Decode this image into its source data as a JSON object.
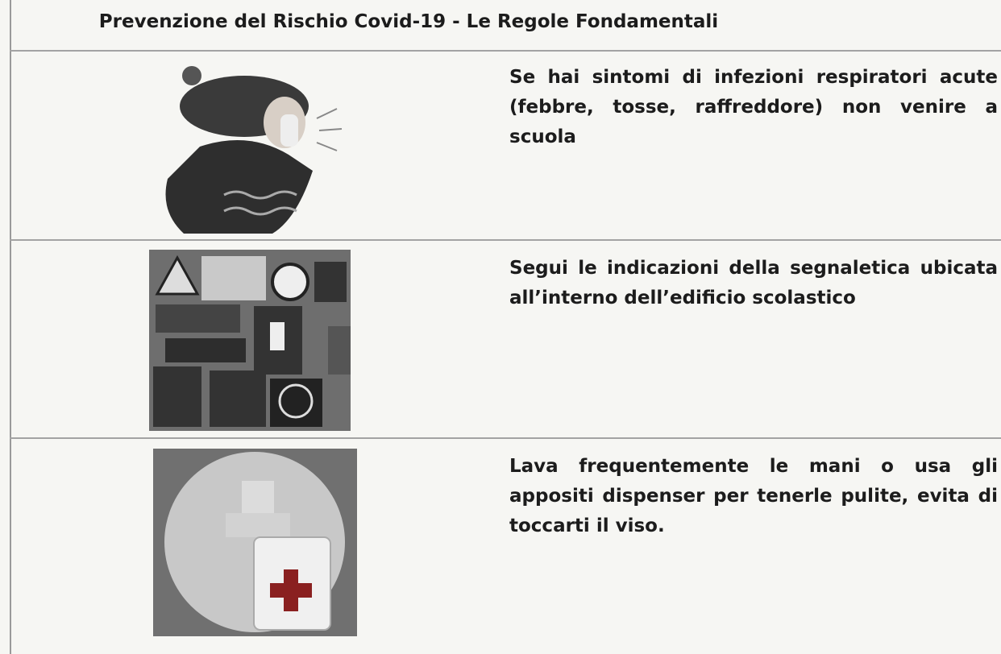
{
  "header": {
    "title": "Prevenzione del Rischio Covid-19 - Le Regole Fondamentali"
  },
  "rows": [
    {
      "text": "Se hai sintomi di infezioni respiratori acute (febbre, tosse, raffreddore) non venire a scuola"
    },
    {
      "text": "Segui le indicazioni della segnaletica ubicata all’interno dell’edificio scolastico"
    },
    {
      "text": "Lava frequentemente le mani o usa gli appositi dispenser per tenerle pulite, evita di toccarti il viso."
    }
  ]
}
